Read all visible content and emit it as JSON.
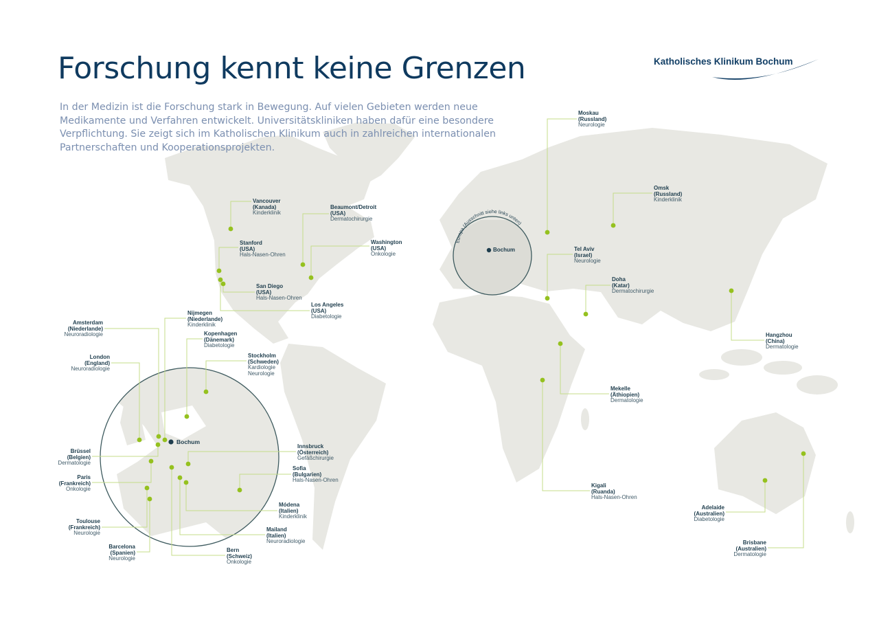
{
  "header": {
    "title": "Forschung kennt keine Grenzen",
    "intro": "In der Medizin ist die Forschung stark in Bewegung. Auf vielen Gebieten werden neue Medikamente und Verfahren entwickelt. Universitätskliniken haben dafür eine besondere Verpflichtung. Sie zeigt sich im Katholischen Klinikum auch in zahlreichen internationalen Partnerschaften und Kooperationsprojekten."
  },
  "logo": {
    "text": "Katholisches Klinikum Bochum"
  },
  "colors": {
    "title": "#0f3a5f",
    "accent": "#95c11f",
    "land": "#e8e8e3",
    "circle": "#3d5a5e",
    "home": "#1e3d4d"
  },
  "home": {
    "label": "Bochum"
  },
  "europe_inset": {
    "caption": "Europa (Ausschnitt siehe links unten)"
  },
  "locations": [
    {
      "city": "Vancouver",
      "country": "(Kanada)",
      "fields": [
        "Kinderklinik"
      ]
    },
    {
      "city": "Beaumont/Detroit",
      "country": "(USA)",
      "fields": [
        "Dermatochirurgie"
      ]
    },
    {
      "city": "Stanford",
      "country": "(USA)",
      "fields": [
        "Hals-Nasen-Ohren"
      ]
    },
    {
      "city": "Washington",
      "country": "(USA)",
      "fields": [
        "Onkologie"
      ]
    },
    {
      "city": "San Diego",
      "country": "(USA)",
      "fields": [
        "Hals-Nasen-Ohren"
      ]
    },
    {
      "city": "Los Angeles",
      "country": "(USA)",
      "fields": [
        "Diabetologie"
      ]
    },
    {
      "city": "Moskau",
      "country": "(Russland)",
      "fields": [
        "Neurologie"
      ]
    },
    {
      "city": "Omsk",
      "country": "(Russland)",
      "fields": [
        "Kinderklinik"
      ]
    },
    {
      "city": "Tel Aviv",
      "country": "(Israel)",
      "fields": [
        "Neurologie"
      ]
    },
    {
      "city": "Doha",
      "country": "(Katar)",
      "fields": [
        "Dermatochirurgie"
      ]
    },
    {
      "city": "Hangzhou",
      "country": "(China)",
      "fields": [
        "Dermatologie"
      ]
    },
    {
      "city": "Mekelle",
      "country": "(Äthiopien)",
      "fields": [
        "Dermatologie"
      ]
    },
    {
      "city": "Kigali",
      "country": "(Ruanda)",
      "fields": [
        "Hals-Nasen-Ohren"
      ]
    },
    {
      "city": "Adelaide",
      "country": "(Australien)",
      "fields": [
        "Diabetologie"
      ]
    },
    {
      "city": "Brisbane",
      "country": "(Australien)",
      "fields": [
        "Dermatologie"
      ]
    },
    {
      "city": "Amsterdam",
      "country": "(Niederlande)",
      "fields": [
        "Neuroradiologie"
      ]
    },
    {
      "city": "Nijmegen",
      "country": "(Niederlande)",
      "fields": [
        "Kinderklinik"
      ]
    },
    {
      "city": "Kopenhagen",
      "country": "(Dänemark)",
      "fields": [
        "Diabetologie"
      ]
    },
    {
      "city": "Stockholm",
      "country": "(Schweden)",
      "fields": [
        "Kardiologie",
        "Neurologie"
      ]
    },
    {
      "city": "London",
      "country": "(England)",
      "fields": [
        "Neuroradiologie"
      ]
    },
    {
      "city": "Brüssel",
      "country": "(Belgien)",
      "fields": [
        "Dermatologie"
      ]
    },
    {
      "city": "Paris",
      "country": "(Frankreich)",
      "fields": [
        "Onkologie"
      ]
    },
    {
      "city": "Toulouse",
      "country": "(Frankreich)",
      "fields": [
        "Neurologie"
      ]
    },
    {
      "city": "Barcelona",
      "country": "(Spanien)",
      "fields": [
        "Neurologie"
      ]
    },
    {
      "city": "Innsbruck",
      "country": "(Österreich)",
      "fields": [
        "Gefäßchirurgie"
      ]
    },
    {
      "city": "Sofia",
      "country": "(Bulgarien)",
      "fields": [
        "Hals-Nasen-Ohren"
      ]
    },
    {
      "city": "Módena",
      "country": "(Italien)",
      "fields": [
        "Kinderklinik"
      ]
    },
    {
      "city": "Mailand",
      "country": "(Italien)",
      "fields": [
        "Neuroradiologie"
      ]
    },
    {
      "city": "Bern",
      "country": "(Schweiz)",
      "fields": [
        "Onkologie"
      ]
    }
  ]
}
